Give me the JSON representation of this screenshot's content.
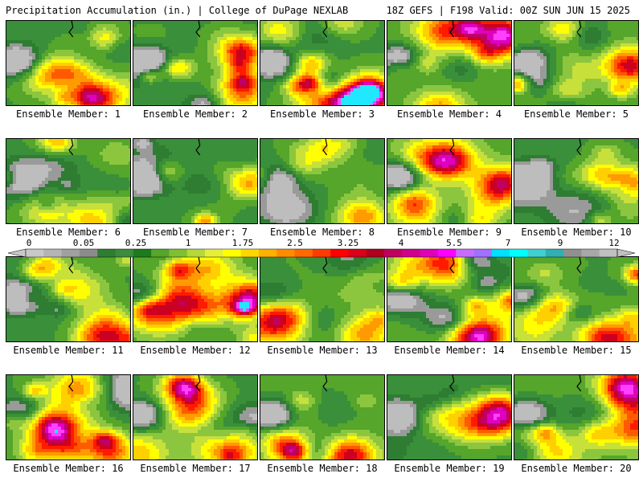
{
  "header": {
    "title": "Precipitation Accumulation (in.) | College of DuPage NEXLAB",
    "valid": "18Z GEFS | F198 Valid: 00Z SUN JUN 15 2025"
  },
  "legend": {
    "ticks": [
      "0",
      "0.05",
      "0.25",
      "1",
      "1.75",
      "2.5",
      "3.25",
      "4",
      "5.5",
      "7",
      "9",
      "12"
    ],
    "colors": [
      "#c8c8c8",
      "#b4b4b4",
      "#a0a0a0",
      "#8c8c8c",
      "#2e7d32",
      "#3d8b3d",
      "#1e7a1e",
      "#55a62a",
      "#7fc031",
      "#b5d83a",
      "#e6ee3a",
      "#ffff00",
      "#ffd700",
      "#ffb000",
      "#ff8c00",
      "#ff6a00",
      "#ff3c00",
      "#ff0000",
      "#d8001a",
      "#b00020",
      "#c00060",
      "#d0008c",
      "#e000b8",
      "#ff00ff",
      "#c86cff",
      "#a070ff",
      "#00e0ff",
      "#00ffff",
      "#40d0d0",
      "#30b0b0",
      "#909090",
      "#a8a8a8",
      "#c0c0c0"
    ]
  },
  "members": [
    {
      "label": "Ensemble Member: 1",
      "intensity": 0.55,
      "seed": 11,
      "hotspot": "bottom-center"
    },
    {
      "label": "Ensemble Member: 2",
      "intensity": 0.35,
      "seed": 23,
      "hotspot": "bottom-right"
    },
    {
      "label": "Ensemble Member: 3",
      "intensity": 0.55,
      "seed": 37,
      "hotspot": "bottom-right"
    },
    {
      "label": "Ensemble Member: 4",
      "intensity": 0.75,
      "seed": 41,
      "hotspot": "top-right"
    },
    {
      "label": "Ensemble Member: 5",
      "intensity": 0.7,
      "seed": 53,
      "hotspot": "right"
    },
    {
      "label": "Ensemble Member: 6",
      "intensity": 0.55,
      "seed": 67,
      "hotspot": "bottom-center"
    },
    {
      "label": "Ensemble Member: 7",
      "intensity": 0.55,
      "seed": 71,
      "hotspot": "right"
    },
    {
      "label": "Ensemble Member: 8",
      "intensity": 0.6,
      "seed": 83,
      "hotspot": "bottom-right"
    },
    {
      "label": "Ensemble Member: 9",
      "intensity": 0.75,
      "seed": 97,
      "hotspot": "right"
    },
    {
      "label": "Ensemble Member: 10",
      "intensity": 0.55,
      "seed": 101,
      "hotspot": "right"
    },
    {
      "label": "Ensemble Member: 11",
      "intensity": 0.55,
      "seed": 113,
      "hotspot": "bottom-center"
    },
    {
      "label": "Ensemble Member: 12",
      "intensity": 0.6,
      "seed": 127,
      "hotspot": "right"
    },
    {
      "label": "Ensemble Member: 13",
      "intensity": 0.6,
      "seed": 131,
      "hotspot": "bottom-right"
    },
    {
      "label": "Ensemble Member: 14",
      "intensity": 0.8,
      "seed": 149,
      "hotspot": "bottom-center"
    },
    {
      "label": "Ensemble Member: 15",
      "intensity": 0.6,
      "seed": 151,
      "hotspot": "bottom-center"
    },
    {
      "label": "Ensemble Member: 16",
      "intensity": 0.6,
      "seed": 163,
      "hotspot": "bottom-right"
    },
    {
      "label": "Ensemble Member: 17",
      "intensity": 0.5,
      "seed": 173,
      "hotspot": "bottom-right"
    },
    {
      "label": "Ensemble Member: 18",
      "intensity": 0.75,
      "seed": 181,
      "hotspot": "bottom-center"
    },
    {
      "label": "Ensemble Member: 19",
      "intensity": 0.55,
      "seed": 191,
      "hotspot": "right"
    },
    {
      "label": "Ensemble Member: 20",
      "intensity": 0.8,
      "seed": 199,
      "hotspot": "top-right"
    }
  ]
}
